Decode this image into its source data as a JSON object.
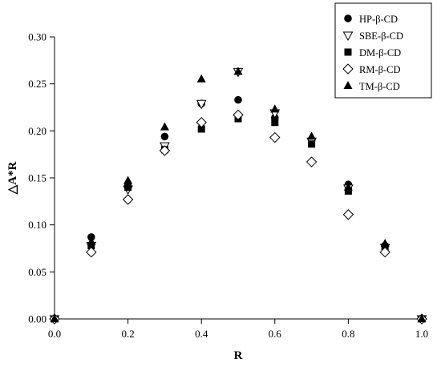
{
  "chart_data": {
    "type": "scatter",
    "title": "",
    "xlabel": "R",
    "ylabel": "△A*R",
    "xlim": [
      0,
      1
    ],
    "ylim": [
      0,
      0.3
    ],
    "xticks": [
      0.0,
      0.2,
      0.4,
      0.6,
      0.8,
      1.0
    ],
    "xtick_labels": [
      "0.0",
      "0.2",
      "0.4",
      "0.6",
      "0.8",
      "1.0"
    ],
    "yticks": [
      0.0,
      0.05,
      0.1,
      0.15,
      0.2,
      0.25,
      0.3
    ],
    "ytick_labels": [
      "0.00",
      "0.05",
      "0.10",
      "0.15",
      "0.20",
      "0.25",
      "0.30"
    ],
    "grid": false,
    "legend_position": "top-right",
    "series": [
      {
        "name": "HP-β-CD",
        "marker": "circle",
        "x": [
          0.0,
          0.1,
          0.2,
          0.3,
          0.4,
          0.5,
          0.6,
          0.7,
          0.8,
          0.9,
          1.0
        ],
        "y": [
          0.0,
          0.087,
          0.141,
          0.194,
          0.229,
          0.233,
          0.214,
          0.19,
          0.143,
          0.078,
          0.0
        ]
      },
      {
        "name": "SBE-β-CD",
        "marker": "triangle-down-open",
        "x": [
          0.0,
          0.1,
          0.2,
          0.3,
          0.4,
          0.5,
          0.6,
          0.7,
          0.8,
          0.9,
          1.0
        ],
        "y": [
          0.0,
          0.078,
          0.138,
          0.184,
          0.229,
          0.263,
          0.219,
          0.189,
          0.139,
          0.076,
          0.0
        ]
      },
      {
        "name": "DM-β-CD",
        "marker": "square",
        "x": [
          0.0,
          0.1,
          0.2,
          0.3,
          0.4,
          0.5,
          0.6,
          0.7,
          0.8,
          0.9,
          1.0
        ],
        "y": [
          0.0,
          0.078,
          0.14,
          0.18,
          0.202,
          0.213,
          0.209,
          0.186,
          0.136,
          0.075,
          0.0
        ]
      },
      {
        "name": "RM-β-CD",
        "marker": "diamond-open",
        "x": [
          0.0,
          0.1,
          0.2,
          0.3,
          0.4,
          0.5,
          0.6,
          0.7,
          0.8,
          0.9,
          1.0
        ],
        "y": [
          0.0,
          0.071,
          0.127,
          0.179,
          0.209,
          0.217,
          0.193,
          0.167,
          0.111,
          0.071,
          0.0
        ]
      },
      {
        "name": "TM-β-CD",
        "marker": "triangle-up",
        "x": [
          0.0,
          0.1,
          0.2,
          0.3,
          0.4,
          0.5,
          0.6,
          0.7,
          0.8,
          0.9,
          1.0
        ],
        "y": [
          0.0,
          0.082,
          0.147,
          0.204,
          0.255,
          0.263,
          0.223,
          0.194,
          0.14,
          0.08,
          0.0
        ]
      }
    ]
  }
}
